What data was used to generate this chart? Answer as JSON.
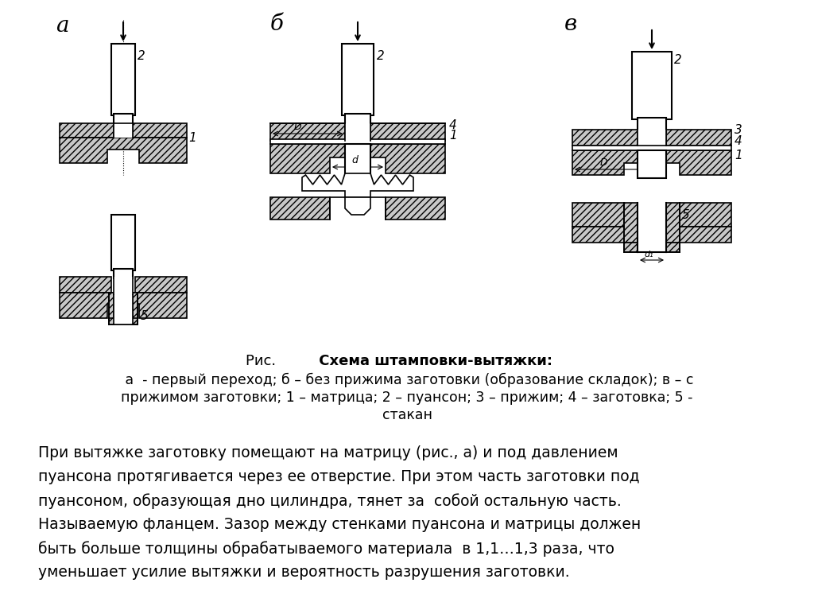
{
  "bg_color": "#ffffff",
  "title_normal": "Рис.    ",
  "title_bold": "     Схема штамповки-вытяжки:",
  "caption_line1": " а  - первый переход; б – без прижима заготовки (образование складок); в – с",
  "caption_line2": "прижимом заготовки; 1 – матрица; 2 – пуансон; 3 – прижим; 4 – заготовка; 5 -",
  "caption_line3": "стакан",
  "body_line1": "При вытяжке заготовку помещают на матрицу (рис., а) и под давлением",
  "body_line2": "пуансона протягивается через ее отверстие. При этом часть заготовки под",
  "body_line3": "пуансоном, образующая дно цилиндра, тянет за  собой остальную часть.",
  "body_line4": "Называемую фланцем. Зазор между стенками пуансона и матрицы должен",
  "body_line5": "быть больше толщины обрабатываемого материала  в 1,1…1,3 раза, что",
  "body_line6": "уменьшает усилие вытяжки и вероятность разрушения заготовки.",
  "label_a": "а",
  "label_b": "б",
  "label_v": "в",
  "line_color": "#000000",
  "hatch_color": "#aaaaaa",
  "white_color": "#ffffff"
}
